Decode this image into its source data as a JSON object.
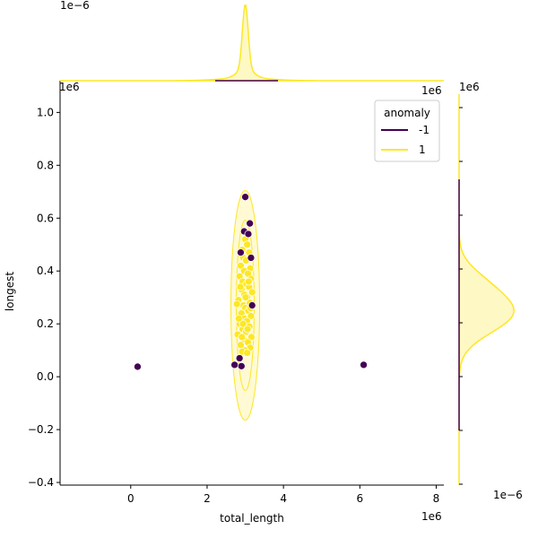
{
  "chart_data": {
    "type": "scatter",
    "title": "",
    "xlabel": "total_length",
    "ylabel": "longest",
    "x_offset_label": "1e6",
    "y_offset_label": "1e6",
    "top_marginal_offset_label": "1e−6",
    "right_marginal_offset_label": "1e−6",
    "xlim": [
      -1.85,
      8.2
    ],
    "ylim": [
      -0.41,
      1.12
    ],
    "xticks": [
      0,
      2,
      4,
      6,
      8
    ],
    "xtick_labels": [
      "0",
      "2",
      "4",
      "6",
      "8"
    ],
    "yticks": [
      -0.4,
      -0.2,
      0.0,
      0.2,
      0.4,
      0.6,
      0.8,
      1.0
    ],
    "ytick_labels": [
      "−0.4",
      "−0.2",
      "0.0",
      "0.2",
      "0.4",
      "0.6",
      "0.8",
      "1.0"
    ],
    "legend": {
      "title": "anomaly",
      "placement": "upper right",
      "entries": [
        {
          "label": "-1",
          "color": "#440154"
        },
        {
          "label": "1",
          "color": "#fde725"
        }
      ]
    },
    "colors": {
      "anomaly_neg": "#440154",
      "anomaly_pos": "#fde725",
      "kde_fill_pos": "#fef8c4"
    },
    "series": [
      {
        "name": "-1",
        "color": "#440154",
        "points": [
          [
            0.18,
            0.038
          ],
          [
            6.1,
            0.045
          ],
          [
            3.0,
            0.68
          ],
          [
            3.12,
            0.58
          ],
          [
            2.97,
            0.55
          ],
          [
            3.08,
            0.54
          ],
          [
            3.18,
            0.27
          ],
          [
            2.72,
            0.045
          ],
          [
            2.85,
            0.07
          ],
          [
            2.9,
            0.04
          ],
          [
            2.88,
            0.47
          ],
          [
            3.15,
            0.45
          ]
        ]
      },
      {
        "name": "1",
        "color": "#fde725",
        "points": [
          [
            3.0,
            0.52
          ],
          [
            3.05,
            0.5
          ],
          [
            2.92,
            0.48
          ],
          [
            3.1,
            0.47
          ],
          [
            2.95,
            0.45
          ],
          [
            3.02,
            0.44
          ],
          [
            2.88,
            0.42
          ],
          [
            3.13,
            0.41
          ],
          [
            2.97,
            0.4
          ],
          [
            3.07,
            0.39
          ],
          [
            2.85,
            0.38
          ],
          [
            3.15,
            0.37
          ],
          [
            2.93,
            0.36
          ],
          [
            3.03,
            0.35
          ],
          [
            3.1,
            0.34
          ],
          [
            2.9,
            0.33
          ],
          [
            3.18,
            0.32
          ],
          [
            2.98,
            0.31
          ],
          [
            3.05,
            0.3
          ],
          [
            2.82,
            0.29
          ],
          [
            3.12,
            0.28
          ],
          [
            2.95,
            0.27
          ],
          [
            3.0,
            0.26
          ],
          [
            2.78,
            0.275
          ],
          [
            3.08,
            0.25
          ],
          [
            2.9,
            0.24
          ],
          [
            3.15,
            0.23
          ],
          [
            2.97,
            0.22
          ],
          [
            3.04,
            0.21
          ],
          [
            2.85,
            0.2
          ],
          [
            3.11,
            0.19
          ],
          [
            2.93,
            0.18
          ],
          [
            3.02,
            0.17
          ],
          [
            2.8,
            0.16
          ],
          [
            3.16,
            0.15
          ],
          [
            2.96,
            0.14
          ],
          [
            3.07,
            0.13
          ],
          [
            2.88,
            0.12
          ],
          [
            3.13,
            0.11
          ],
          [
            2.99,
            0.1
          ],
          [
            2.92,
            0.095
          ],
          [
            3.05,
            0.09
          ],
          [
            2.87,
            0.34
          ],
          [
            3.09,
            0.36
          ],
          [
            2.94,
            0.2
          ],
          [
            3.01,
            0.3
          ],
          [
            2.83,
            0.22
          ],
          [
            3.14,
            0.26
          ],
          [
            2.91,
            0.15
          ],
          [
            3.06,
            0.18
          ]
        ]
      }
    ],
    "marginal_top": {
      "type": "kde",
      "series": "1",
      "mode_x": 3.0
    },
    "marginal_right": {
      "type": "kde",
      "series": "1",
      "mode_y": 0.24
    }
  }
}
